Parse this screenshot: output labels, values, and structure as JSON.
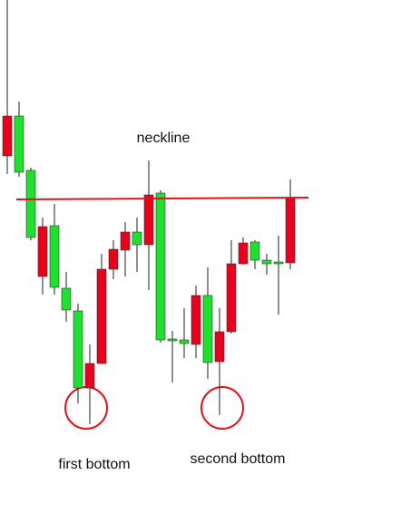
{
  "chart_data": {
    "type": "candlestick",
    "open": [
      405,
      449,
      389,
      272,
      328,
      259,
      234,
      149,
      176,
      280,
      301,
      321,
      307,
      364,
      203,
      202,
      197,
      251,
      178,
      211,
      286,
      310,
      290,
      288,
      287
    ],
    "high": [
      577,
      465,
      392,
      337,
      352,
      277,
      242,
      197,
      297,
      312,
      332,
      337,
      400,
      367,
      212,
      237,
      262,
      282,
      237,
      312,
      315,
      312,
      297,
      317,
      379
    ],
    "low": [
      385,
      382,
      312,
      252,
      252,
      222,
      132,
      109,
      175,
      269,
      272,
      277,
      257,
      199,
      155,
      182,
      182,
      159,
      119,
      209,
      285,
      280,
      274,
      230,
      280
    ],
    "close": [
      449,
      387,
      315,
      327,
      260,
      235,
      149,
      176,
      280,
      302,
      321,
      307,
      362,
      202,
      201,
      198,
      251,
      177,
      211,
      286,
      309,
      290,
      286,
      286,
      359
    ],
    "up_color": "#e8001c",
    "down_color": "#1fe02c",
    "ylim": [
      0,
      577
    ],
    "neckline": [
      357,
      359
    ],
    "neckline_color": "#e0141c",
    "annotations": {
      "neckline": "neckline",
      "first": "first bottom",
      "second": "second bottom"
    }
  }
}
